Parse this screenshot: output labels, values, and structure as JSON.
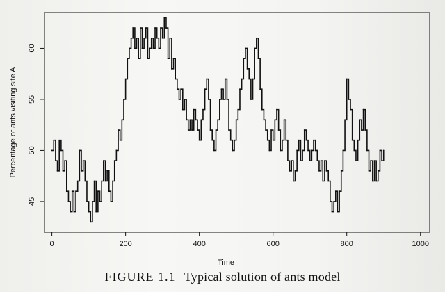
{
  "chart_data": {
    "type": "line",
    "xlabel": "Time",
    "ylabel": "Percentage of ants visiting site A",
    "xlim": [
      -20,
      1025
    ],
    "ylim": [
      42,
      63.5
    ],
    "x_ticks": [
      0,
      200,
      400,
      600,
      800,
      1000
    ],
    "y_ticks": [
      45,
      50,
      55,
      60
    ],
    "x_tick_labels": [
      "0",
      "200",
      "400",
      "600",
      "800",
      "1000"
    ],
    "y_tick_labels": [
      "45",
      "50",
      "55",
      "60"
    ],
    "grid": false,
    "series": [
      {
        "points": [
          [
            0,
            50
          ],
          [
            5,
            51
          ],
          [
            10,
            49
          ],
          [
            15,
            48
          ],
          [
            20,
            51
          ],
          [
            25,
            50
          ],
          [
            30,
            48
          ],
          [
            35,
            49
          ],
          [
            40,
            46
          ],
          [
            45,
            45
          ],
          [
            50,
            44
          ],
          [
            55,
            46
          ],
          [
            60,
            44
          ],
          [
            65,
            46
          ],
          [
            70,
            47
          ],
          [
            75,
            50
          ],
          [
            80,
            48
          ],
          [
            85,
            49
          ],
          [
            90,
            47
          ],
          [
            95,
            45
          ],
          [
            100,
            44
          ],
          [
            105,
            43
          ],
          [
            110,
            45
          ],
          [
            115,
            47
          ],
          [
            120,
            44
          ],
          [
            125,
            46
          ],
          [
            130,
            45
          ],
          [
            135,
            47
          ],
          [
            140,
            49
          ],
          [
            145,
            47
          ],
          [
            150,
            48
          ],
          [
            155,
            46
          ],
          [
            160,
            45
          ],
          [
            165,
            47
          ],
          [
            170,
            49
          ],
          [
            175,
            50
          ],
          [
            180,
            52
          ],
          [
            185,
            51
          ],
          [
            190,
            53
          ],
          [
            195,
            55
          ],
          [
            200,
            57
          ],
          [
            205,
            59
          ],
          [
            210,
            60
          ],
          [
            215,
            61
          ],
          [
            220,
            62
          ],
          [
            225,
            60
          ],
          [
            230,
            61
          ],
          [
            235,
            59
          ],
          [
            240,
            62
          ],
          [
            245,
            60
          ],
          [
            250,
            61
          ],
          [
            255,
            62
          ],
          [
            260,
            59
          ],
          [
            265,
            60
          ],
          [
            270,
            61
          ],
          [
            275,
            60
          ],
          [
            280,
            62
          ],
          [
            285,
            61
          ],
          [
            290,
            60
          ],
          [
            295,
            62
          ],
          [
            300,
            61
          ],
          [
            305,
            63
          ],
          [
            310,
            62
          ],
          [
            315,
            59
          ],
          [
            320,
            61
          ],
          [
            325,
            58
          ],
          [
            330,
            59
          ],
          [
            335,
            57
          ],
          [
            340,
            56
          ],
          [
            345,
            55
          ],
          [
            350,
            56
          ],
          [
            355,
            54
          ],
          [
            360,
            55
          ],
          [
            365,
            53
          ],
          [
            370,
            52
          ],
          [
            375,
            53
          ],
          [
            380,
            52
          ],
          [
            385,
            54
          ],
          [
            390,
            53
          ],
          [
            395,
            52
          ],
          [
            400,
            51
          ],
          [
            405,
            53
          ],
          [
            410,
            54
          ],
          [
            415,
            56
          ],
          [
            420,
            57
          ],
          [
            425,
            55
          ],
          [
            430,
            52
          ],
          [
            435,
            51
          ],
          [
            440,
            50
          ],
          [
            445,
            52
          ],
          [
            450,
            53
          ],
          [
            455,
            55
          ],
          [
            460,
            56
          ],
          [
            465,
            55
          ],
          [
            470,
            57
          ],
          [
            475,
            55
          ],
          [
            480,
            52
          ],
          [
            485,
            51
          ],
          [
            490,
            50
          ],
          [
            495,
            51
          ],
          [
            500,
            53
          ],
          [
            505,
            54
          ],
          [
            510,
            56
          ],
          [
            515,
            57
          ],
          [
            520,
            59
          ],
          [
            525,
            60
          ],
          [
            530,
            58
          ],
          [
            535,
            57
          ],
          [
            540,
            55
          ],
          [
            545,
            57
          ],
          [
            550,
            60
          ],
          [
            555,
            61
          ],
          [
            560,
            59
          ],
          [
            565,
            56
          ],
          [
            570,
            54
          ],
          [
            575,
            53
          ],
          [
            580,
            52
          ],
          [
            585,
            51
          ],
          [
            590,
            50
          ],
          [
            595,
            52
          ],
          [
            600,
            51
          ],
          [
            605,
            53
          ],
          [
            610,
            54
          ],
          [
            615,
            52
          ],
          [
            620,
            50
          ],
          [
            625,
            51
          ],
          [
            630,
            53
          ],
          [
            635,
            51
          ],
          [
            640,
            49
          ],
          [
            645,
            48
          ],
          [
            650,
            49
          ],
          [
            655,
            47
          ],
          [
            660,
            48
          ],
          [
            665,
            50
          ],
          [
            670,
            51
          ],
          [
            675,
            49
          ],
          [
            680,
            50
          ],
          [
            685,
            52
          ],
          [
            690,
            51
          ],
          [
            695,
            50
          ],
          [
            700,
            49
          ],
          [
            705,
            50
          ],
          [
            710,
            51
          ],
          [
            715,
            50
          ],
          [
            720,
            49
          ],
          [
            725,
            48
          ],
          [
            730,
            49
          ],
          [
            735,
            47
          ],
          [
            740,
            49
          ],
          [
            745,
            48
          ],
          [
            750,
            47
          ],
          [
            755,
            45
          ],
          [
            760,
            44
          ],
          [
            765,
            45
          ],
          [
            770,
            46
          ],
          [
            775,
            44
          ],
          [
            780,
            46
          ],
          [
            785,
            48
          ],
          [
            790,
            50
          ],
          [
            795,
            53
          ],
          [
            800,
            57
          ],
          [
            805,
            55
          ],
          [
            810,
            54
          ],
          [
            815,
            51
          ],
          [
            820,
            50
          ],
          [
            825,
            49
          ],
          [
            830,
            51
          ],
          [
            835,
            53
          ],
          [
            840,
            52
          ],
          [
            845,
            54
          ],
          [
            850,
            52
          ],
          [
            855,
            50
          ],
          [
            860,
            48
          ],
          [
            865,
            49
          ],
          [
            870,
            47
          ],
          [
            875,
            49
          ],
          [
            880,
            47
          ],
          [
            885,
            48
          ],
          [
            890,
            50
          ],
          [
            895,
            49
          ],
          [
            900,
            50
          ]
        ]
      }
    ]
  },
  "caption": {
    "figure_label": "FIGURE 1.1",
    "text": "Typical solution of ants model"
  }
}
